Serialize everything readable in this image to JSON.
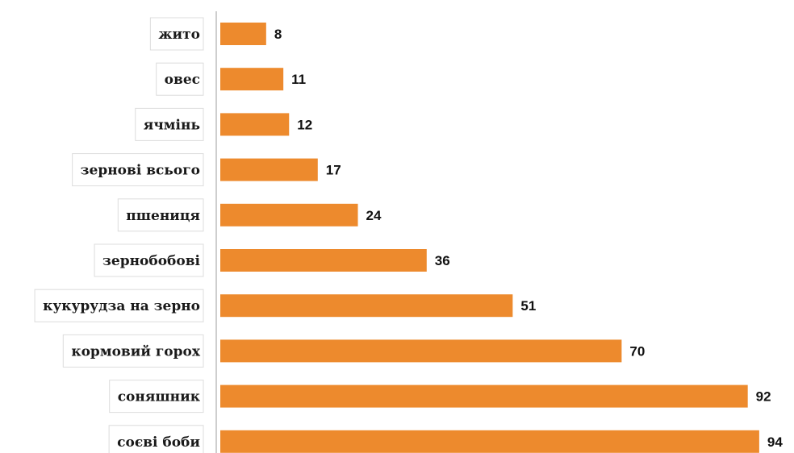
{
  "chart_data": {
    "type": "bar",
    "orientation": "horizontal",
    "categories": [
      "жито",
      "овес",
      "ячмінь",
      "зернові всього",
      "пшениця",
      "зернобобові",
      "кукурудза на зерно",
      "кормовий горох",
      "соняшник",
      "соєві боби"
    ],
    "values": [
      8,
      11,
      12,
      17,
      24,
      36,
      51,
      70,
      92,
      94
    ],
    "bar_color": "#ED8A2D",
    "xlim": [
      0,
      95
    ],
    "grid": false,
    "legend": "none"
  }
}
